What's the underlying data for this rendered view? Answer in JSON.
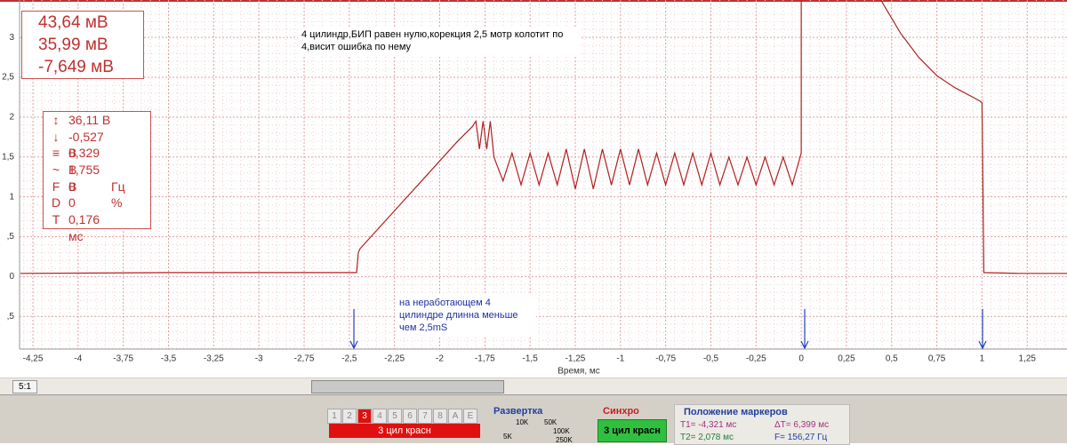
{
  "chart_data": {
    "type": "line",
    "x_label": "Время, мс",
    "color": "#b02020",
    "grid": true,
    "xlim": [
      -4.324,
      1.47
    ],
    "ylim": [
      -0.91,
      3.47
    ],
    "xticks": [
      {
        "value": -4.25,
        "label": "-4,25"
      },
      -4,
      {
        "value": -3.75,
        "label": "-3,75"
      },
      {
        "value": -3.5,
        "label": "-3,5"
      },
      {
        "value": -3.25,
        "label": "-3,25"
      },
      -3,
      {
        "value": -2.75,
        "label": "-2,75"
      },
      {
        "value": -2.5,
        "label": "-2,5"
      },
      {
        "value": -2.25,
        "label": "-2,25"
      },
      -2,
      {
        "value": -1.75,
        "label": "-1,75"
      },
      {
        "value": -1.5,
        "label": "-1,5"
      },
      {
        "value": -1.25,
        "label": "-1,25"
      },
      -1,
      {
        "value": -0.75,
        "label": "-0,75"
      },
      {
        "value": -0.5,
        "label": "-0,5"
      },
      {
        "value": -0.25,
        "label": "-0,25"
      },
      0,
      {
        "value": 0.25,
        "label": "0,25"
      },
      {
        "value": 0.5,
        "label": "0,5"
      },
      {
        "value": 0.75,
        "label": "0,75"
      },
      1,
      {
        "value": 1.25,
        "label": "1,25"
      }
    ],
    "yticks": [
      {
        "value": -0.5,
        "label": ",5"
      },
      0,
      {
        "value": 0.5,
        "label": ",5"
      },
      1,
      {
        "value": 1.5,
        "label": "1,5"
      },
      2,
      {
        "value": 2.5,
        "label": "2,5"
      },
      3
    ],
    "x": [
      -4.32,
      -3.5,
      -2.8,
      -2.46,
      -2.45,
      -2.44,
      -2.3,
      -2.2,
      -2.1,
      -2.0,
      -1.9,
      -1.82,
      -1.8,
      -1.78,
      -1.76,
      -1.74,
      -1.72,
      -1.7,
      -1.65,
      -1.6,
      -1.55,
      -1.5,
      -1.45,
      -1.4,
      -1.35,
      -1.3,
      -1.25,
      -1.2,
      -1.15,
      -1.1,
      -1.05,
      -1.0,
      -0.95,
      -0.9,
      -0.85,
      -0.8,
      -0.75,
      -0.7,
      -0.65,
      -0.6,
      -0.55,
      -0.5,
      -0.45,
      -0.4,
      -0.35,
      -0.3,
      -0.25,
      -0.2,
      -0.15,
      -0.1,
      -0.05,
      0,
      0,
      0.2,
      0.44,
      0.55,
      0.65,
      0.75,
      0.85,
      0.95,
      0.99,
      1.0,
      1.01,
      1.2,
      1.47
    ],
    "values": [
      0.04,
      0.05,
      0.05,
      0.05,
      0.3,
      0.35,
      0.7,
      0.95,
      1.2,
      1.45,
      1.7,
      1.88,
      1.95,
      1.6,
      1.95,
      1.6,
      1.95,
      1.5,
      1.2,
      1.55,
      1.15,
      1.55,
      1.15,
      1.55,
      1.15,
      1.6,
      1.1,
      1.6,
      1.1,
      1.6,
      1.15,
      1.6,
      1.15,
      1.6,
      1.15,
      1.55,
      1.15,
      1.55,
      1.15,
      1.55,
      1.15,
      1.55,
      1.15,
      1.5,
      1.15,
      1.5,
      1.15,
      1.5,
      1.15,
      1.5,
      1.15,
      1.55,
      3.47,
      null,
      3.47,
      3.05,
      2.75,
      2.52,
      2.37,
      2.25,
      2.2,
      2.18,
      0.05,
      0.04,
      0.04
    ]
  },
  "markers": {
    "box": [
      "43,64 мВ",
      "35,99 мВ",
      "-7,649 мВ"
    ],
    "stats": [
      {
        "value": "36,11 В"
      },
      {
        "value": "-0,527 В"
      },
      {
        "value": "0,329 В"
      },
      {
        "value": "1,755 В"
      },
      {
        "label": "F",
        "value": "0",
        "unit": "Гц"
      },
      {
        "label": "D",
        "value": "0",
        "unit": "%"
      },
      {
        "label": "T",
        "value": "0,176 мс"
      }
    ]
  },
  "notes": {
    "top": [
      "4 цилиндр,БИП равен нулю,корекция 2,5 мотр колотит по",
      "4,висит ошибка по нему"
    ],
    "bottom": [
      "на неработающем 4",
      "цилиндре длинна меньше",
      "чем 2,5mS"
    ]
  },
  "toolbar": {
    "zoom": "5:1",
    "channels": [
      "1",
      "2",
      "3",
      "4",
      "5",
      "6",
      "7",
      "8",
      "A",
      "E"
    ],
    "channel_name": "3 цил красн",
    "sweep_title": "Развертка",
    "sweep_labels": [
      "10K",
      "50K",
      "5K",
      "100K",
      "250K"
    ],
    "sync_title": "Синхро",
    "sync_button": "3 цил красн",
    "marker_title": "Положение маркеров",
    "t1": "T1= -4,321 мс",
    "dt": "ΔT= 6,399 мс",
    "t2": "T2= 2,078 мс",
    "f": "F= 156,27 Гц"
  }
}
